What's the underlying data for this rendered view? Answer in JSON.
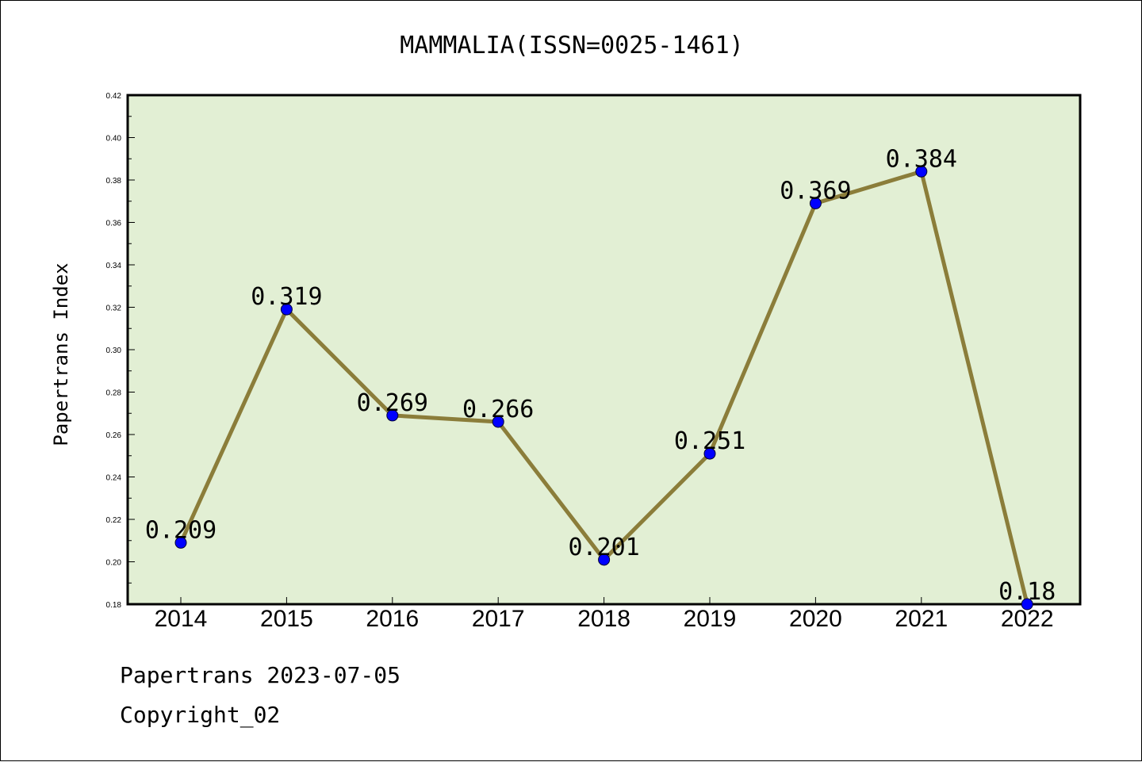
{
  "chart_data": {
    "type": "line",
    "title": "MAMMALIA(ISSN=0025-1461)",
    "ylabel": "Papertrans Index",
    "xlabel": "",
    "categories": [
      "2014",
      "2015",
      "2016",
      "2017",
      "2018",
      "2019",
      "2020",
      "2021",
      "2022"
    ],
    "values": [
      0.209,
      0.319,
      0.269,
      0.266,
      0.201,
      0.251,
      0.369,
      0.384,
      0.18
    ],
    "data_labels": [
      "0.209",
      "0.319",
      "0.269",
      "0.266",
      "0.201",
      "0.251",
      "0.369",
      "0.384",
      "0.18"
    ],
    "ylim": [
      0.18,
      0.42
    ],
    "yticks": [
      "0.18",
      "0.20",
      "0.22",
      "0.24",
      "0.26",
      "0.28",
      "0.30",
      "0.32",
      "0.34",
      "0.36",
      "0.38",
      "0.40",
      "0.42"
    ],
    "grid": false,
    "legend": "none",
    "colors": {
      "line": "#8b7d3a",
      "marker": "#0000ff",
      "plot_background": "#e2efd4",
      "axes": "#000000"
    }
  },
  "footer": {
    "line1": "Papertrans 2023-07-05",
    "line2": "Copyright_02"
  }
}
